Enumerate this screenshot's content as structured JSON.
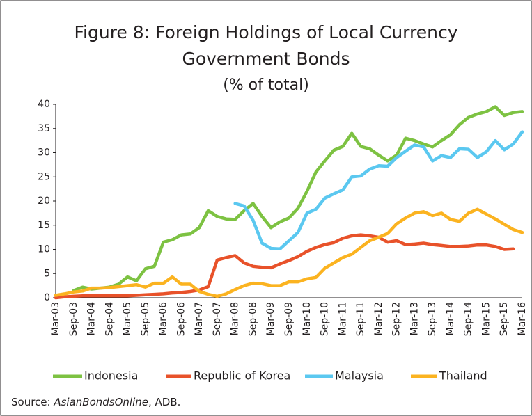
{
  "chart_data": {
    "type": "line",
    "title_lines": [
      "Figure 8: Foreign Holdings of Local Currency",
      "Government Bonds"
    ],
    "subtitle": "(% of total)",
    "source": {
      "prefix": "Source: ",
      "italic": "AsianBondsOnline",
      "suffix": ", ADB."
    },
    "categories": [
      "Mar-03",
      null,
      "Sep-03",
      null,
      "Mar-04",
      null,
      "Sep-04",
      null,
      "Mar-05",
      null,
      "Sep-05",
      null,
      "Mar-06",
      null,
      "Sep-06",
      null,
      "Mar-07",
      null,
      "Sep-07",
      null,
      "Mar-08",
      null,
      "Sep-08",
      null,
      "Mar-09",
      null,
      "Sep-09",
      null,
      "Mar-10",
      null,
      "Sep-10",
      null,
      "Mar-11",
      null,
      "Sep-11",
      null,
      "Mar-12",
      null,
      "Sep-12",
      null,
      "Mar-13",
      null,
      "Sep-13",
      null,
      "Mar-14",
      null,
      "Sep-14",
      null,
      "Mar-15",
      null,
      "Sep-15",
      null,
      "Mar-16"
    ],
    "series": [
      {
        "name": "Indonesia",
        "color": "#7dc242",
        "values": [
          null,
          null,
          1.5,
          2.2,
          1.8,
          2.0,
          2.2,
          2.8,
          4.3,
          3.5,
          6.0,
          6.5,
          11.5,
          12.0,
          13.0,
          13.2,
          14.5,
          18.0,
          16.8,
          16.3,
          16.2,
          18.0,
          19.5,
          16.8,
          14.5,
          15.7,
          16.5,
          18.5,
          22.0,
          26.0,
          28.3,
          30.5,
          31.3,
          34.0,
          31.3,
          30.8,
          29.5,
          28.3,
          29.5,
          33.0,
          32.5,
          31.8,
          31.2,
          32.5,
          33.7,
          35.8,
          37.3,
          38.0,
          38.5,
          39.5,
          37.7,
          38.3,
          38.5
        ]
      },
      {
        "name": "Republic of Korea",
        "color": "#e8522a",
        "values": [
          0,
          0.2,
          0.3,
          0.4,
          0.4,
          0.4,
          0.4,
          0.4,
          0.4,
          0.5,
          0.6,
          0.7,
          0.8,
          1.0,
          1.1,
          1.3,
          1.6,
          2.3,
          7.8,
          8.3,
          8.7,
          7.2,
          6.5,
          6.3,
          6.2,
          7.0,
          7.7,
          8.5,
          9.6,
          10.4,
          11.0,
          11.4,
          12.3,
          12.8,
          13.0,
          12.8,
          12.5,
          11.5,
          11.8,
          11.0,
          11.1,
          11.3,
          11.0,
          10.8,
          10.6,
          10.6,
          10.7,
          10.9,
          10.9,
          10.6,
          10.0,
          10.1,
          null
        ]
      },
      {
        "name": "Malaysia",
        "color": "#5bc8f0",
        "values": [
          null,
          null,
          null,
          null,
          null,
          null,
          null,
          null,
          null,
          null,
          null,
          null,
          null,
          null,
          null,
          null,
          null,
          null,
          null,
          null,
          19.5,
          19.0,
          16.0,
          11.3,
          10.2,
          10.1,
          11.8,
          13.5,
          17.5,
          18.3,
          20.6,
          21.5,
          22.3,
          25.0,
          25.2,
          26.6,
          27.3,
          27.2,
          29.0,
          30.3,
          31.6,
          31.2,
          28.3,
          29.4,
          29.0,
          30.8,
          30.7,
          29.0,
          30.2,
          32.5,
          30.6,
          31.8,
          34.3
        ]
      },
      {
        "name": "Thailand",
        "color": "#fbb320",
        "values": [
          0.5,
          0.8,
          1.2,
          1.4,
          2.0,
          2.0,
          2.1,
          2.3,
          2.5,
          2.7,
          2.2,
          3.0,
          3.0,
          4.3,
          2.8,
          2.8,
          1.3,
          0.7,
          0.3,
          0.8,
          1.7,
          2.5,
          3.0,
          2.9,
          2.5,
          2.5,
          3.3,
          3.3,
          3.9,
          4.2,
          6.1,
          7.2,
          8.3,
          9.0,
          10.4,
          11.8,
          12.5,
          13.3,
          15.3,
          16.5,
          17.5,
          17.8,
          17.0,
          17.5,
          16.2,
          15.8,
          17.5,
          18.3,
          17.3,
          16.3,
          15.2,
          14.1,
          13.5
        ]
      }
    ],
    "ylim": [
      0,
      40
    ],
    "yticks": [
      0,
      5,
      10,
      15,
      20,
      25,
      30,
      35,
      40
    ],
    "grid": false,
    "legend": "bottom"
  }
}
